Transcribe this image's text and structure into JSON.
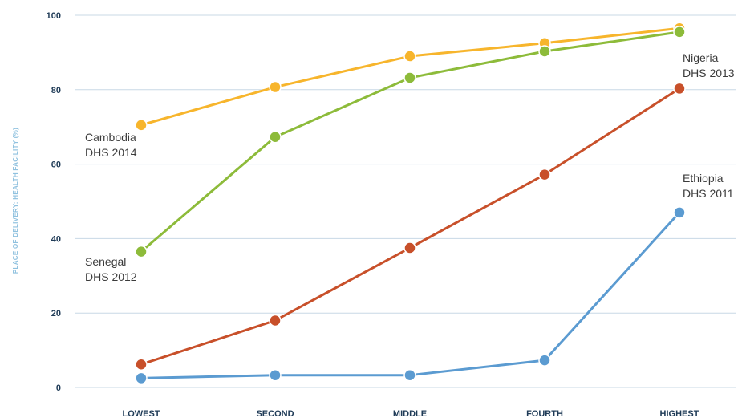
{
  "chart_data": {
    "type": "line",
    "categories": [
      "LOWEST",
      "SECOND",
      "MIDDLE",
      "FOURTH",
      "HIGHEST"
    ],
    "ylabel": "PLACE OF DELIVERY: HEALTH FACILITY (%)",
    "ylim": [
      0,
      100
    ],
    "yticks": [
      "0",
      "20",
      "40",
      "60",
      "80",
      "100"
    ],
    "grid": true,
    "series": [
      {
        "label_lines": [
          "Cambodia",
          "DHS 2014"
        ],
        "color": "#f7b52c",
        "values": [
          70.5,
          80.7,
          89,
          92.5,
          96.5
        ]
      },
      {
        "label_lines": [
          "Senegal",
          "DHS 2012"
        ],
        "color": "#8dbb3a",
        "values": [
          36.5,
          67.3,
          83.2,
          90.3,
          95.5
        ]
      },
      {
        "label_lines": [
          "Nigeria",
          "DHS 2013"
        ],
        "color": "#c8502a",
        "values": [
          6.2,
          18,
          37.5,
          57.2,
          80.3
        ]
      },
      {
        "label_lines": [
          "Ethiopia",
          "DHS 2011"
        ],
        "color": "#5b9bd1",
        "values": [
          2.5,
          3.3,
          3.3,
          7.3,
          47
        ]
      }
    ]
  }
}
